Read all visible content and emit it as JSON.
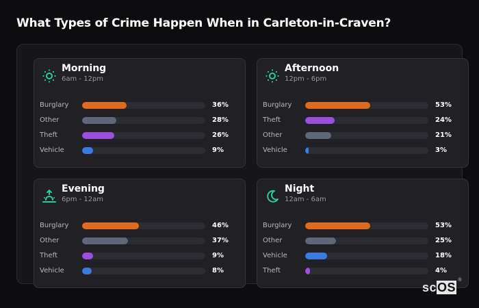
{
  "page": {
    "title": "What Types of Crime Happen When in Carleton-in-Craven?"
  },
  "colors": {
    "Burglary": "#e06b1f",
    "Other": "#5f6878",
    "Theft": "#9b4fdc",
    "Vehicle": "#3a7be0",
    "icon_accent": "#2ecc9a"
  },
  "cards": [
    {
      "title": "Morning",
      "subtitle": "6am - 12pm",
      "icon": "sun-icon",
      "rows": [
        {
          "label": "Burglary",
          "value": "36%",
          "pct": 36
        },
        {
          "label": "Other",
          "value": "28%",
          "pct": 28
        },
        {
          "label": "Theft",
          "value": "26%",
          "pct": 26
        },
        {
          "label": "Vehicle",
          "value": "9%",
          "pct": 9
        }
      ]
    },
    {
      "title": "Afternoon",
      "subtitle": "12pm - 6pm",
      "icon": "sun-icon",
      "rows": [
        {
          "label": "Burglary",
          "value": "53%",
          "pct": 53
        },
        {
          "label": "Theft",
          "value": "24%",
          "pct": 24
        },
        {
          "label": "Other",
          "value": "21%",
          "pct": 21
        },
        {
          "label": "Vehicle",
          "value": "3%",
          "pct": 3
        }
      ]
    },
    {
      "title": "Evening",
      "subtitle": "6pm - 12am",
      "icon": "sunset-icon",
      "rows": [
        {
          "label": "Burglary",
          "value": "46%",
          "pct": 46
        },
        {
          "label": "Other",
          "value": "37%",
          "pct": 37
        },
        {
          "label": "Theft",
          "value": "9%",
          "pct": 9
        },
        {
          "label": "Vehicle",
          "value": "8%",
          "pct": 8
        }
      ]
    },
    {
      "title": "Night",
      "subtitle": "12am - 6am",
      "icon": "moon-icon",
      "rows": [
        {
          "label": "Burglary",
          "value": "53%",
          "pct": 53
        },
        {
          "label": "Other",
          "value": "25%",
          "pct": 25
        },
        {
          "label": "Vehicle",
          "value": "18%",
          "pct": 18
        },
        {
          "label": "Theft",
          "value": "4%",
          "pct": 4
        }
      ]
    }
  ],
  "logo": {
    "sc": "sc",
    "os": "OS",
    "reg": "®"
  }
}
